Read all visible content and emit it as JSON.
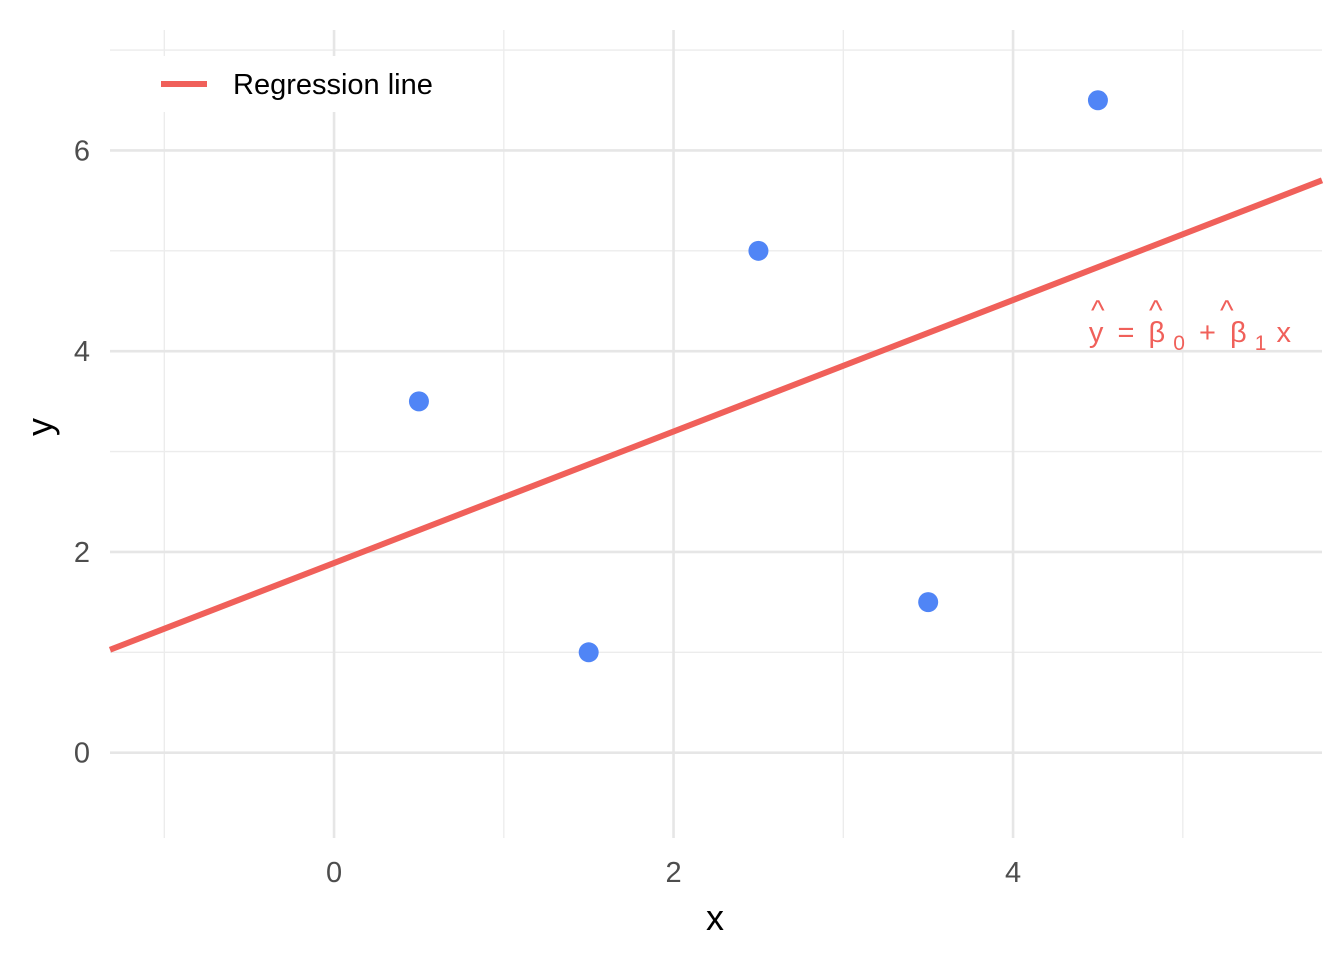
{
  "chart_data": {
    "type": "scatter",
    "title": "",
    "xlabel": "x",
    "ylabel": "y",
    "xlim": [
      -1.32,
      5.82
    ],
    "ylim": [
      -0.85,
      7.2
    ],
    "x_ticks": [
      0,
      2,
      4
    ],
    "y_ticks": [
      0,
      2,
      4,
      6
    ],
    "x_tick_labels": [
      "0",
      "2",
      "4"
    ],
    "y_tick_labels": [
      "0",
      "2",
      "4",
      "6"
    ],
    "x_minor_ticks": [
      -1,
      1,
      3,
      5
    ],
    "y_minor_ticks": [
      1,
      3,
      5,
      7
    ],
    "grid": true,
    "points": {
      "x": [
        0.5,
        1.5,
        2.5,
        3.5,
        4.5
      ],
      "y": [
        3.5,
        1.0,
        5.0,
        1.5,
        6.5
      ],
      "color": "#5085F6"
    },
    "regression_line": {
      "label": "Regression line",
      "intercept": 1.89,
      "slope": 0.655,
      "color": "#F0605A"
    },
    "annotation": {
      "text_parts": [
        "y",
        "=",
        "β",
        "0",
        "+",
        "β",
        "1",
        "x"
      ],
      "hats": [
        "^",
        "^",
        "^"
      ],
      "x": 4.5,
      "y": 4.2,
      "color": "#F0605A"
    },
    "legend": {
      "position": "top-left",
      "entries": [
        "Regression line"
      ]
    }
  }
}
